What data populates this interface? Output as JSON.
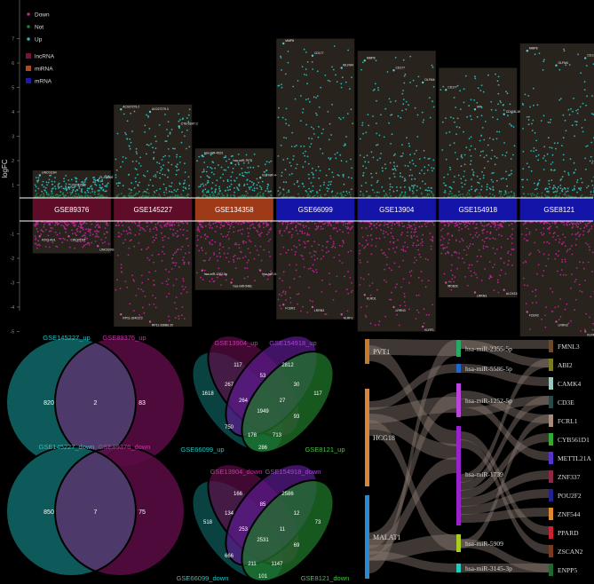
{
  "manhattan": {
    "ylabel": "logFC",
    "yticks": [
      -5,
      -4,
      -3,
      -2,
      -1,
      1,
      2,
      3,
      4,
      5,
      6,
      7
    ],
    "ylim": [
      -5.6,
      8.6
    ],
    "legend": [
      {
        "label": "Down",
        "color": "#b0268a"
      },
      {
        "label": "Not",
        "color": "#1f7a4a"
      },
      {
        "label": "Up",
        "color": "#2bb3b3"
      },
      {
        "label": "lncRNA",
        "color": "#7a1240"
      },
      {
        "label": "miRNA",
        "color": "#b04a20"
      },
      {
        "label": "mRNA",
        "color": "#1a1ab0"
      }
    ],
    "datasets": [
      {
        "name": "GSE89376",
        "type": "lncRNA",
        "color": "#5e0c28",
        "max": 1.6,
        "min": -1.8,
        "labels": [
          {
            "t": "LINC01164",
            "v": 1.4
          },
          {
            "t": "LINC01508",
            "v": 0.9
          },
          {
            "t": "FLJ42969",
            "v": 1.2
          },
          {
            "t": "FTX3-AS1",
            "v": -1.1
          },
          {
            "t": "CDCK5-DT",
            "v": -1.1
          },
          {
            "t": "LINC02092",
            "v": -1.5
          }
        ]
      },
      {
        "name": "GSE145227",
        "type": "lncRNA",
        "color": "#5e0c28",
        "max": 4.3,
        "min": -4.8,
        "labels": [
          {
            "t": "AC027279.2",
            "v": 4.1
          },
          {
            "t": "AC027279.3",
            "v": 4.0
          },
          {
            "t": "CTB-61M7.2",
            "v": 3.4
          },
          {
            "t": "RP11-324I22.2",
            "v": -4.3
          },
          {
            "t": "RP11-336B6.20",
            "v": -4.6
          }
        ]
      },
      {
        "name": "GSE134358",
        "type": "miRNA",
        "color": "#9e3a18",
        "max": 2.5,
        "min": -3.3,
        "labels": [
          {
            "t": "hsa-miR-4523",
            "v": 2.2
          },
          {
            "t": "hsa-miR-7977",
            "v": 1.9
          },
          {
            "t": "hsa-miR-4486",
            "v": 1.3
          },
          {
            "t": "hsa-miR-1262-5p",
            "v": -2.5
          },
          {
            "t": "hsa-miR-548s",
            "v": -3.0
          },
          {
            "t": "hsa-miR-548T-5p",
            "v": -2.5
          }
        ]
      },
      {
        "name": "GSE66099",
        "type": "mRNA",
        "color": "#1414a8",
        "max": 7.0,
        "min": -4.5,
        "labels": [
          {
            "t": "MMP8",
            "v": 6.8
          },
          {
            "t": "CD177",
            "v": 6.3
          },
          {
            "t": "OLFM4",
            "v": 5.8
          },
          {
            "t": "FCER2",
            "v": -3.9
          },
          {
            "t": "LRRN3",
            "v": -4.0
          },
          {
            "t": "KLRF1",
            "v": -4.3
          }
        ]
      },
      {
        "name": "GSE13904",
        "type": "mRNA",
        "color": "#1414a8",
        "max": 6.5,
        "min": -5.0,
        "labels": [
          {
            "t": "MMP8",
            "v": 6.1
          },
          {
            "t": "CD177",
            "v": 5.7
          },
          {
            "t": "OLFM4",
            "v": 5.2
          },
          {
            "t": "KLRD1",
            "v": -3.5
          },
          {
            "t": "LRRN3",
            "v": -4.0
          },
          {
            "t": "KLRF1",
            "v": -4.8
          }
        ]
      },
      {
        "name": "GSE154918",
        "type": "mRNA",
        "color": "#1414a8",
        "max": 5.8,
        "min": -3.6,
        "labels": [
          {
            "t": "CD177",
            "v": 4.9
          },
          {
            "t": "HP",
            "v": 4.1
          },
          {
            "t": "CD163L1B",
            "v": 3.9
          },
          {
            "t": "MOB3C",
            "v": -3.0
          },
          {
            "t": "LRRN3",
            "v": -3.4
          },
          {
            "t": "ALOX15",
            "v": -3.3
          }
        ]
      },
      {
        "name": "GSE8121",
        "type": "mRNA",
        "color": "#1414a8",
        "max": 6.8,
        "min": -5.2,
        "labels": [
          {
            "t": "MMP8",
            "v": 6.5
          },
          {
            "t": "OLFM4",
            "v": 5.9
          },
          {
            "t": "CD177",
            "v": 6.2
          },
          {
            "t": "FCER2",
            "v": -4.2
          },
          {
            "t": "LRRN3",
            "v": -4.6
          },
          {
            "t": "KLRF1",
            "v": -5.0
          }
        ]
      }
    ]
  },
  "venn2": [
    {
      "left": "GSE145227_up",
      "right": "GSE89376_up",
      "left_only": 820,
      "both": 2,
      "right_only": 83
    },
    {
      "left": "GSE145227_down",
      "right": "GSE89376_down",
      "left_only": 850,
      "both": 7,
      "right_only": 75
    }
  ],
  "venn4": [
    {
      "sets": [
        "GSE66099_up",
        "GSE13904_up",
        "GSE154918_up",
        "GSE8121_up"
      ],
      "regions": {
        "A": 1618,
        "B": 117,
        "C": 2812,
        "D": 117,
        "AB": 267,
        "BC": 53,
        "CD": 30,
        "ABC": 264,
        "BCD": 27,
        "ABCD": 1949,
        "ACD": 93,
        "AD": 178,
        "ABD": 713,
        "AC": 750,
        "BD": 286
      }
    },
    {
      "sets": [
        "GSE66099_down",
        "GSE13904_down",
        "GSE154918_down",
        "GSE8121_down"
      ],
      "regions": {
        "A": 518,
        "B": 166,
        "C": 2586,
        "D": 73,
        "AB": 134,
        "BC": 85,
        "CD": 12,
        "ABC": 253,
        "BCD": 11,
        "ABCD": 2531,
        "ACD": 69,
        "AD": 211,
        "ABD": 1147,
        "AC": 666,
        "BD": 101
      }
    }
  ],
  "sankey": {
    "lnc": [
      {
        "name": "PVT1",
        "color": "#c87a2a",
        "size": 2
      },
      {
        "name": "HCG18",
        "color": "#d8843a",
        "size": 6
      },
      {
        "name": "MALAT1",
        "color": "#2a8ad0",
        "size": 7
      }
    ],
    "mir": [
      {
        "name": "hsa-miR-2355-5p",
        "color": "#22aa66",
        "size": 2
      },
      {
        "name": "hsa-miR-5586-5p",
        "color": "#2266cc",
        "size": 1
      },
      {
        "name": "hsa-miR-1252-5p",
        "color": "#bb44dd",
        "size": 4
      },
      {
        "name": "hsa-miR-1739",
        "color": "#9922cc",
        "size": 10
      },
      {
        "name": "hsa-miR-5909",
        "color": "#aacc22",
        "size": 2
      },
      {
        "name": "hsa-miR-3145-3p",
        "color": "#22ccbb",
        "size": 1
      }
    ],
    "mrna": [
      {
        "name": "FMNL3",
        "color": "#6b4a2a"
      },
      {
        "name": "ABI2",
        "color": "#7a7a22"
      },
      {
        "name": "CAMK4",
        "color": "#9ac8c0"
      },
      {
        "name": "CD3E",
        "color": "#2a4a4a"
      },
      {
        "name": "FCRL1",
        "color": "#aa8a7a"
      },
      {
        "name": "CYB561D1",
        "color": "#33aa33"
      },
      {
        "name": "METTL21A",
        "color": "#5533cc"
      },
      {
        "name": "ZNF337",
        "color": "#8a2a44"
      },
      {
        "name": "POU2F2",
        "color": "#22228a"
      },
      {
        "name": "ZNF544",
        "color": "#dd8833"
      },
      {
        "name": "PPARD",
        "color": "#cc2233"
      },
      {
        "name": "ZSCAN2",
        "color": "#7a3a22"
      },
      {
        "name": "ENPP5",
        "color": "#226633"
      }
    ],
    "links": [
      [
        0,
        0
      ],
      [
        0,
        3
      ],
      [
        1,
        1
      ],
      [
        1,
        2
      ],
      [
        1,
        3
      ],
      [
        1,
        4
      ],
      [
        2,
        2
      ],
      [
        2,
        3
      ],
      [
        2,
        4
      ],
      [
        2,
        5
      ],
      [
        2,
        0
      ]
    ],
    "links2": [
      [
        0,
        0
      ],
      [
        0,
        1
      ],
      [
        1,
        2
      ],
      [
        2,
        3
      ],
      [
        2,
        4
      ],
      [
        2,
        6
      ],
      [
        3,
        1
      ],
      [
        3,
        3
      ],
      [
        3,
        5
      ],
      [
        3,
        7
      ],
      [
        3,
        8
      ],
      [
        3,
        9
      ],
      [
        3,
        10
      ],
      [
        3,
        11
      ],
      [
        4,
        4
      ],
      [
        4,
        12
      ],
      [
        5,
        12
      ]
    ]
  }
}
